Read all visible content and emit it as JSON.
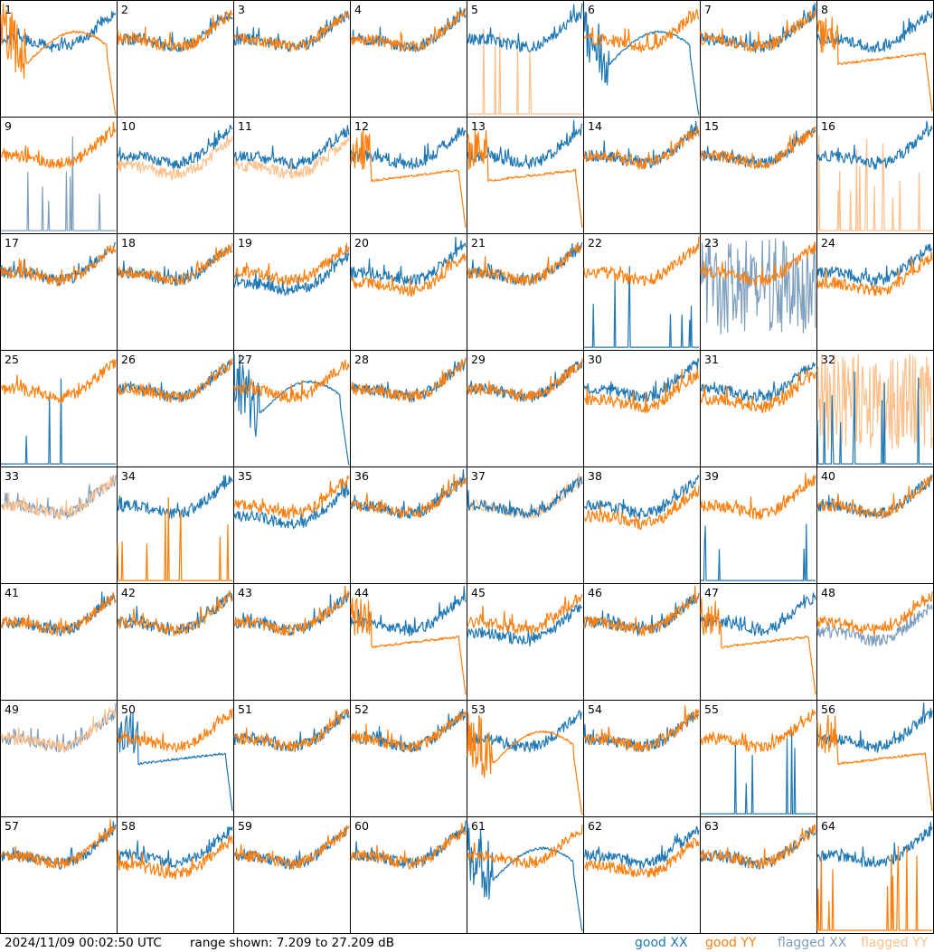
{
  "footer": {
    "timestamp": "2024/11/09 00:02:50 UTC",
    "range_text": "range shown: 7.209 to 27.209 dB"
  },
  "legend": {
    "good_xx": "good XX",
    "good_yy": "good YY",
    "flagged_xx": "flagged XX",
    "flagged_yy": "flagged YY"
  },
  "colors": {
    "good_xx": "#1f77b4",
    "good_yy": "#ff7f0e",
    "flagged_xx": "#7f9fbf",
    "flagged_yy": "#ffbf8a",
    "grid": "#000000"
  },
  "chart_data": {
    "type": "line",
    "layout": "8x8 grid of small multiples",
    "ylim": [
      7.209,
      27.209
    ],
    "y_unit": "dB",
    "panels": [
      {
        "id": "1",
        "xx": "good",
        "yy": "good",
        "xx_shape": "normal",
        "yy_shape": "dip_then_decay"
      },
      {
        "id": "2",
        "xx": "good",
        "yy": "good",
        "xx_shape": "normal",
        "yy_shape": "normal"
      },
      {
        "id": "3",
        "xx": "good",
        "yy": "good",
        "xx_shape": "normal",
        "yy_shape": "normal"
      },
      {
        "id": "4",
        "xx": "good",
        "yy": "good",
        "xx_shape": "normal",
        "yy_shape": "normal"
      },
      {
        "id": "5",
        "xx": "good",
        "yy": "flagged",
        "xx_shape": "normal",
        "yy_shape": "spikes"
      },
      {
        "id": "6",
        "xx": "good",
        "yy": "good",
        "xx_shape": "dip_then_decay",
        "yy_shape": "normal"
      },
      {
        "id": "7",
        "xx": "good",
        "yy": "good",
        "xx_shape": "normal",
        "yy_shape": "normal"
      },
      {
        "id": "8",
        "xx": "good",
        "yy": "good",
        "xx_shape": "normal",
        "yy_shape": "flat_decay"
      },
      {
        "id": "9",
        "xx": "flagged",
        "yy": "good",
        "xx_shape": "spikes",
        "yy_shape": "normal"
      },
      {
        "id": "10",
        "xx": "good",
        "yy": "flagged",
        "xx_shape": "normal",
        "yy_shape": "normal_low"
      },
      {
        "id": "11",
        "xx": "good",
        "yy": "flagged",
        "xx_shape": "normal",
        "yy_shape": "normal_low"
      },
      {
        "id": "12",
        "xx": "good",
        "yy": "good",
        "xx_shape": "normal",
        "yy_shape": "flat_decay"
      },
      {
        "id": "13",
        "xx": "good",
        "yy": "good",
        "xx_shape": "normal",
        "yy_shape": "flat_decay"
      },
      {
        "id": "14",
        "xx": "good",
        "yy": "good",
        "xx_shape": "normal",
        "yy_shape": "normal"
      },
      {
        "id": "15",
        "xx": "good",
        "yy": "good",
        "xx_shape": "normal",
        "yy_shape": "normal"
      },
      {
        "id": "16",
        "xx": "good",
        "yy": "flagged",
        "xx_shape": "normal",
        "yy_shape": "spikes"
      },
      {
        "id": "17",
        "xx": "good",
        "yy": "good",
        "xx_shape": "normal",
        "yy_shape": "normal"
      },
      {
        "id": "18",
        "xx": "good",
        "yy": "good",
        "xx_shape": "normal",
        "yy_shape": "normal"
      },
      {
        "id": "19",
        "xx": "good",
        "yy": "good",
        "xx_shape": "normal_low",
        "yy_shape": "normal"
      },
      {
        "id": "20",
        "xx": "good",
        "yy": "good",
        "xx_shape": "normal",
        "yy_shape": "normal_low"
      },
      {
        "id": "21",
        "xx": "good",
        "yy": "good",
        "xx_shape": "normal",
        "yy_shape": "normal"
      },
      {
        "id": "22",
        "xx": "good",
        "yy": "good",
        "xx_shape": "spikes",
        "yy_shape": "normal"
      },
      {
        "id": "23",
        "xx": "flagged",
        "yy": "good",
        "xx_shape": "noisy",
        "yy_shape": "normal"
      },
      {
        "id": "24",
        "xx": "good",
        "yy": "good",
        "xx_shape": "normal",
        "yy_shape": "normal_low"
      },
      {
        "id": "25",
        "xx": "good",
        "yy": "good",
        "xx_shape": "spikes",
        "yy_shape": "normal"
      },
      {
        "id": "26",
        "xx": "good",
        "yy": "good",
        "xx_shape": "normal",
        "yy_shape": "normal"
      },
      {
        "id": "27",
        "xx": "good",
        "yy": "good",
        "xx_shape": "dip_then_decay",
        "yy_shape": "normal"
      },
      {
        "id": "28",
        "xx": "good",
        "yy": "good",
        "xx_shape": "normal",
        "yy_shape": "normal"
      },
      {
        "id": "29",
        "xx": "good",
        "yy": "good",
        "xx_shape": "normal",
        "yy_shape": "normal"
      },
      {
        "id": "30",
        "xx": "good",
        "yy": "good",
        "xx_shape": "normal",
        "yy_shape": "normal_low"
      },
      {
        "id": "31",
        "xx": "good",
        "yy": "good",
        "xx_shape": "normal",
        "yy_shape": "normal_low"
      },
      {
        "id": "32",
        "xx": "good",
        "yy": "flagged",
        "xx_shape": "spikes",
        "yy_shape": "noisy"
      },
      {
        "id": "33",
        "xx": "flagged",
        "yy": "flagged",
        "xx_shape": "normal",
        "yy_shape": "normal"
      },
      {
        "id": "34",
        "xx": "good",
        "yy": "good",
        "xx_shape": "normal",
        "yy_shape": "spikes"
      },
      {
        "id": "35",
        "xx": "good",
        "yy": "good",
        "xx_shape": "normal_low",
        "yy_shape": "normal"
      },
      {
        "id": "36",
        "xx": "good",
        "yy": "good",
        "xx_shape": "normal",
        "yy_shape": "normal"
      },
      {
        "id": "37",
        "xx": "good",
        "yy": "flagged",
        "xx_shape": "normal",
        "yy_shape": "normal"
      },
      {
        "id": "38",
        "xx": "good",
        "yy": "good",
        "xx_shape": "normal",
        "yy_shape": "normal_low"
      },
      {
        "id": "39",
        "xx": "good",
        "yy": "good",
        "xx_shape": "spikes",
        "yy_shape": "normal"
      },
      {
        "id": "40",
        "xx": "good",
        "yy": "good",
        "xx_shape": "normal",
        "yy_shape": "normal"
      },
      {
        "id": "41",
        "xx": "good",
        "yy": "good",
        "xx_shape": "normal",
        "yy_shape": "normal"
      },
      {
        "id": "42",
        "xx": "good",
        "yy": "good",
        "xx_shape": "normal",
        "yy_shape": "normal"
      },
      {
        "id": "43",
        "xx": "good",
        "yy": "good",
        "xx_shape": "normal",
        "yy_shape": "normal"
      },
      {
        "id": "44",
        "xx": "good",
        "yy": "good",
        "xx_shape": "normal",
        "yy_shape": "flat_decay"
      },
      {
        "id": "45",
        "xx": "good",
        "yy": "good",
        "xx_shape": "normal_low",
        "yy_shape": "normal"
      },
      {
        "id": "46",
        "xx": "good",
        "yy": "good",
        "xx_shape": "normal",
        "yy_shape": "normal"
      },
      {
        "id": "47",
        "xx": "good",
        "yy": "good",
        "xx_shape": "normal",
        "yy_shape": "flat_decay"
      },
      {
        "id": "48",
        "xx": "flagged",
        "yy": "good",
        "xx_shape": "normal_low",
        "yy_shape": "normal"
      },
      {
        "id": "49",
        "xx": "flagged",
        "yy": "flagged",
        "xx_shape": "normal",
        "yy_shape": "normal"
      },
      {
        "id": "50",
        "xx": "good",
        "yy": "good",
        "xx_shape": "flat_decay",
        "yy_shape": "normal"
      },
      {
        "id": "51",
        "xx": "good",
        "yy": "good",
        "xx_shape": "normal",
        "yy_shape": "normal"
      },
      {
        "id": "52",
        "xx": "good",
        "yy": "good",
        "xx_shape": "normal",
        "yy_shape": "normal"
      },
      {
        "id": "53",
        "xx": "good",
        "yy": "good",
        "xx_shape": "normal",
        "yy_shape": "dip_then_decay"
      },
      {
        "id": "54",
        "xx": "good",
        "yy": "good",
        "xx_shape": "normal",
        "yy_shape": "normal"
      },
      {
        "id": "55",
        "xx": "good",
        "yy": "good",
        "xx_shape": "spikes",
        "yy_shape": "normal"
      },
      {
        "id": "56",
        "xx": "good",
        "yy": "good",
        "xx_shape": "normal",
        "yy_shape": "flat_decay"
      },
      {
        "id": "57",
        "xx": "good",
        "yy": "good",
        "xx_shape": "normal",
        "yy_shape": "normal"
      },
      {
        "id": "58",
        "xx": "good",
        "yy": "good",
        "xx_shape": "normal",
        "yy_shape": "normal_low"
      },
      {
        "id": "59",
        "xx": "good",
        "yy": "good",
        "xx_shape": "normal",
        "yy_shape": "normal"
      },
      {
        "id": "60",
        "xx": "good",
        "yy": "good",
        "xx_shape": "normal",
        "yy_shape": "normal"
      },
      {
        "id": "61",
        "xx": "good",
        "yy": "good",
        "xx_shape": "dip_then_decay",
        "yy_shape": "normal"
      },
      {
        "id": "62",
        "xx": "good",
        "yy": "good",
        "xx_shape": "normal",
        "yy_shape": "normal_low"
      },
      {
        "id": "63",
        "xx": "good",
        "yy": "good",
        "xx_shape": "normal",
        "yy_shape": "normal"
      },
      {
        "id": "64",
        "xx": "good",
        "yy": "good",
        "xx_shape": "normal",
        "yy_shape": "spikes"
      }
    ]
  }
}
